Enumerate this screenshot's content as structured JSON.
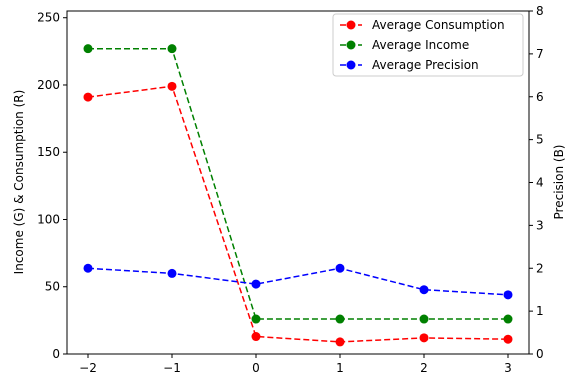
{
  "chart_data": {
    "type": "line",
    "x": [
      -2,
      -1,
      0,
      1,
      2,
      3
    ],
    "x_tick_labels": [
      "−2",
      "−1",
      "0",
      "1",
      "2",
      "3"
    ],
    "xlim": [
      -2.25,
      3.25
    ],
    "left_axis": {
      "ylabel": "Income (G) & Consumption (R)",
      "ylim": [
        0,
        255
      ],
      "ticks": [
        0,
        50,
        100,
        150,
        200,
        250
      ]
    },
    "right_axis": {
      "ylabel": "Precision (B)",
      "ylim": [
        0,
        8
      ],
      "ticks": [
        0,
        1,
        2,
        3,
        4,
        5,
        6,
        7,
        8
      ]
    },
    "series": [
      {
        "name": "Average Consumption",
        "axis": "left",
        "color": "#ff0000",
        "style": "dashed",
        "marker": "circle",
        "values": [
          191,
          199,
          13,
          9,
          12,
          11
        ]
      },
      {
        "name": "Average Income",
        "axis": "left",
        "color": "#008000",
        "style": "dashed",
        "marker": "circle",
        "values": [
          227,
          227,
          26,
          26,
          26,
          26
        ]
      },
      {
        "name": "Average Precision",
        "axis": "right",
        "color": "#0000ff",
        "style": "dashed",
        "marker": "circle",
        "values": [
          2.0,
          1.88,
          1.63,
          2.0,
          1.5,
          1.38
        ]
      }
    ],
    "legend": {
      "placement": "top-right"
    },
    "grid": false
  }
}
